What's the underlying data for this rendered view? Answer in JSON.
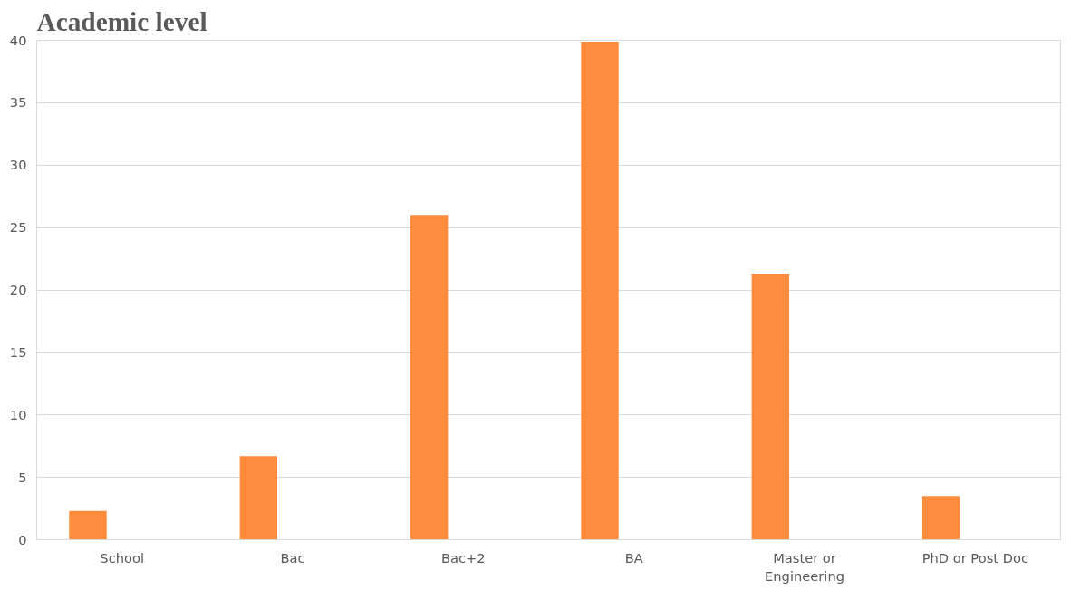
{
  "chart_data": {
    "type": "bar",
    "title": "Academic level",
    "categories": [
      "School",
      "Bac",
      "Bac+2",
      "BA",
      "Master or Engineering",
      "PhD or Post Doc"
    ],
    "values": [
      2.3,
      6.7,
      26.0,
      39.9,
      21.3,
      3.5
    ],
    "color": "#fd8c3c",
    "ylim": [
      0,
      40
    ],
    "yticks": [
      0,
      5,
      10,
      15,
      20,
      25,
      30,
      35,
      40
    ],
    "grid": "y"
  }
}
